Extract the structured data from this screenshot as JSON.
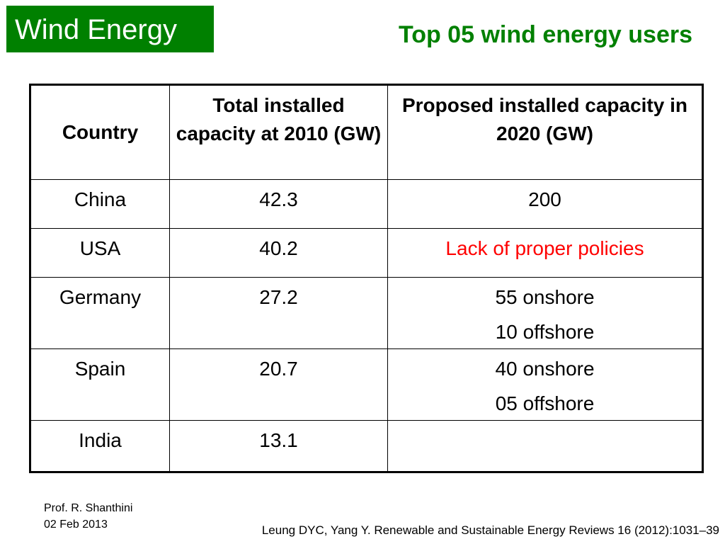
{
  "slide": {
    "title": "Wind Energy",
    "subtitle": "Top 05 wind energy users",
    "colors": {
      "title_background": "#008000",
      "title_text": "#ffffff",
      "subtitle_text": "#008000",
      "highlight_text": "#ff0000"
    }
  },
  "table": {
    "headers": [
      "Country",
      "Total installed capacity at 2010 (GW)",
      "Proposed installed capacity in 2020 (GW)"
    ],
    "rows": [
      {
        "country": "China",
        "capacity_2010": "42.3",
        "proposed_2020": [
          "200"
        ]
      },
      {
        "country": "USA",
        "capacity_2010": "40.2",
        "proposed_2020": [
          "Lack of proper policies"
        ]
      },
      {
        "country": "Germany",
        "capacity_2010": "27.2",
        "proposed_2020": [
          "55 onshore",
          "10 offshore"
        ]
      },
      {
        "country": "Spain",
        "capacity_2010": "20.7",
        "proposed_2020": [
          "40 onshore",
          "05 offshore"
        ]
      },
      {
        "country": "India",
        "capacity_2010": "13.1",
        "proposed_2020": [
          ""
        ]
      }
    ]
  },
  "footer": {
    "author": "Prof. R. Shanthini",
    "date": "02 Feb 2013",
    "reference": "Leung DYC, Yang Y. Renewable and Sustainable Energy Reviews 16 (2012):1031–39"
  }
}
